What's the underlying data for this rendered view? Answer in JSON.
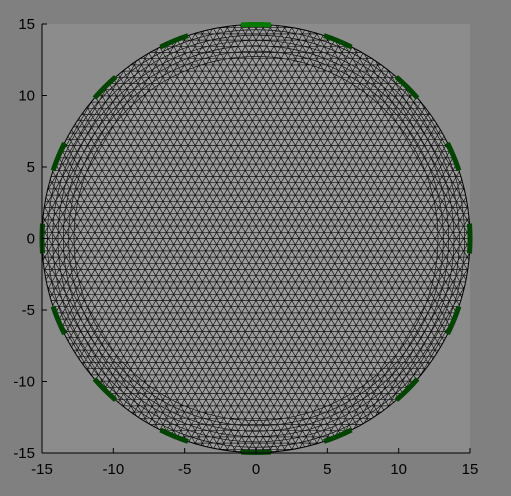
{
  "figure": {
    "background": "#808080",
    "axes_background": "#8c8c8c",
    "disk_fill": "#9e9e9e",
    "mesh_color": "#000000",
    "electrode_color": "#004400",
    "electrode_highlight_color": "#007a00"
  },
  "chart_data": {
    "type": "mesh",
    "title": "",
    "xlabel": "",
    "ylabel": "",
    "xlim": [
      -15,
      15
    ],
    "ylim": [
      -15,
      15
    ],
    "grid": false,
    "x_ticks": [
      "-15",
      "-10",
      "-5",
      "0",
      "5",
      "10",
      "15"
    ],
    "y_ticks": [
      "15",
      "10",
      "5",
      "0",
      "-5",
      "-10",
      "-15"
    ],
    "x_tick_values": [
      -15,
      -10,
      -5,
      0,
      5,
      10,
      15
    ],
    "y_tick_values": [
      15,
      10,
      5,
      0,
      -5,
      -10,
      -15
    ],
    "domain": {
      "shape": "circle",
      "center": [
        0,
        0
      ],
      "radius": 15
    },
    "electrodes": {
      "count": 16,
      "angle_width_deg": 8,
      "start_angle_deg": 90,
      "highlighted_index": 0
    }
  }
}
